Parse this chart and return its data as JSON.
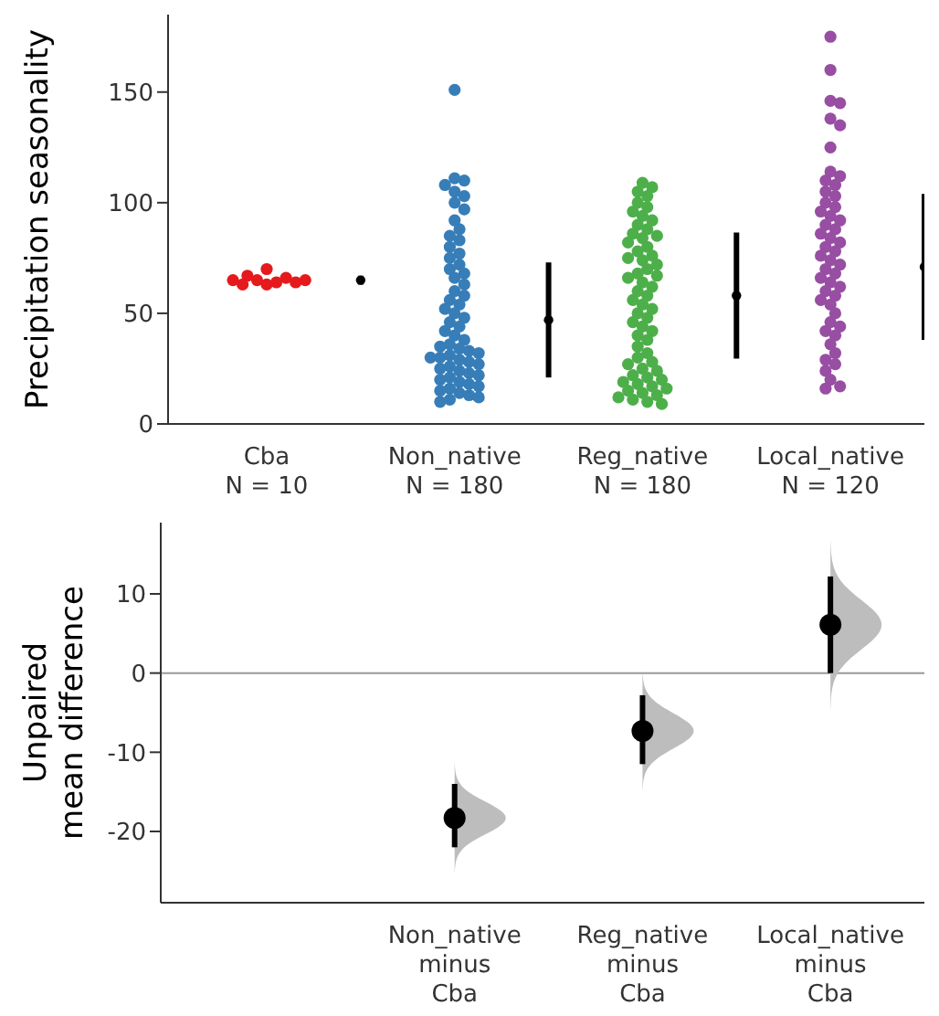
{
  "chart_data": [
    {
      "type": "scatter",
      "ylabel": "Precipitation seasonality",
      "categories": [
        "Cba\nN = 10",
        null,
        "Non_native\nN = 180",
        null,
        "Reg_native\nN = 180",
        null,
        "Local_native\nN = 120",
        null
      ],
      "ylim": [
        0,
        185
      ],
      "yticks": [
        0,
        50,
        100,
        150
      ],
      "marker": "circle",
      "series": [
        {
          "color": "#e41a1c",
          "x": [
            "Cba\nN = 10",
            "Cba\nN = 10",
            "Cba\nN = 10",
            "Cba\nN = 10",
            "Cba\nN = 10",
            "Cba\nN = 10",
            "Cba\nN = 10",
            "Cba\nN = 10",
            "Cba\nN = 10",
            "Cba\nN = 10"
          ],
          "values": [
            63,
            64,
            65,
            66,
            70,
            67,
            63,
            64,
            65,
            65
          ]
        },
        {
          "color": "#377eb8",
          "x": [
            "Non_native\nN = 180",
            "Non_native\nN = 180",
            "Non_native\nN = 180",
            "Non_native\nN = 180",
            "Non_native\nN = 180",
            "Non_native\nN = 180",
            "Non_native\nN = 180",
            "Non_native\nN = 180",
            "Non_native\nN = 180",
            "Non_native\nN = 180",
            "Non_native\nN = 180",
            "Non_native\nN = 180",
            "Non_native\nN = 180",
            "Non_native\nN = 180",
            "Non_native\nN = 180",
            "Non_native\nN = 180",
            "Non_native\nN = 180",
            "Non_native\nN = 180",
            "Non_native\nN = 180",
            "Non_native\nN = 180",
            "Non_native\nN = 180",
            "Non_native\nN = 180",
            "Non_native\nN = 180",
            "Non_native\nN = 180",
            "Non_native\nN = 180",
            "Non_native\nN = 180",
            "Non_native\nN = 180",
            "Non_native\nN = 180",
            "Non_native\nN = 180",
            "Non_native\nN = 180",
            "Non_native\nN = 180",
            "Non_native\nN = 180",
            "Non_native\nN = 180",
            "Non_native\nN = 180",
            "Non_native\nN = 180",
            "Non_native\nN = 180",
            "Non_native\nN = 180",
            "Non_native\nN = 180",
            "Non_native\nN = 180",
            "Non_native\nN = 180",
            "Non_native\nN = 180",
            "Non_native\nN = 180",
            "Non_native\nN = 180",
            "Non_native\nN = 180",
            "Non_native\nN = 180",
            "Non_native\nN = 180",
            "Non_native\nN = 180",
            "Non_native\nN = 180",
            "Non_native\nN = 180",
            "Non_native\nN = 180",
            "Non_native\nN = 180",
            "Non_native\nN = 180",
            "Non_native\nN = 180",
            "Non_native\nN = 180",
            "Non_native\nN = 180",
            "Non_native\nN = 180",
            "Non_native\nN = 180",
            "Non_native\nN = 180",
            "Non_native\nN = 180",
            "Non_native\nN = 180"
          ],
          "values": [
            151,
            111,
            110,
            108,
            105,
            103,
            100,
            97,
            92,
            88,
            85,
            83,
            80,
            77,
            75,
            72,
            70,
            68,
            66,
            63,
            60,
            58,
            56,
            54,
            52,
            50,
            48,
            46,
            44,
            42,
            40,
            38,
            36,
            35,
            34,
            33,
            32,
            31,
            30,
            30,
            29,
            28,
            27,
            26,
            25,
            24,
            23,
            22,
            21,
            20,
            19,
            18,
            17,
            16,
            15,
            14,
            13,
            12,
            11,
            10
          ]
        },
        {
          "color": "#4daf4a",
          "x": [
            "Reg_native\nN = 180",
            "Reg_native\nN = 180",
            "Reg_native\nN = 180",
            "Reg_native\nN = 180",
            "Reg_native\nN = 180",
            "Reg_native\nN = 180",
            "Reg_native\nN = 180",
            "Reg_native\nN = 180",
            "Reg_native\nN = 180",
            "Reg_native\nN = 180",
            "Reg_native\nN = 180",
            "Reg_native\nN = 180",
            "Reg_native\nN = 180",
            "Reg_native\nN = 180",
            "Reg_native\nN = 180",
            "Reg_native\nN = 180",
            "Reg_native\nN = 180",
            "Reg_native\nN = 180",
            "Reg_native\nN = 180",
            "Reg_native\nN = 180",
            "Reg_native\nN = 180",
            "Reg_native\nN = 180",
            "Reg_native\nN = 180",
            "Reg_native\nN = 180",
            "Reg_native\nN = 180",
            "Reg_native\nN = 180",
            "Reg_native\nN = 180",
            "Reg_native\nN = 180",
            "Reg_native\nN = 180",
            "Reg_native\nN = 180",
            "Reg_native\nN = 180",
            "Reg_native\nN = 180",
            "Reg_native\nN = 180",
            "Reg_native\nN = 180",
            "Reg_native\nN = 180",
            "Reg_native\nN = 180",
            "Reg_native\nN = 180",
            "Reg_native\nN = 180",
            "Reg_native\nN = 180",
            "Reg_native\nN = 180",
            "Reg_native\nN = 180",
            "Reg_native\nN = 180",
            "Reg_native\nN = 180",
            "Reg_native\nN = 180",
            "Reg_native\nN = 180",
            "Reg_native\nN = 180",
            "Reg_native\nN = 180",
            "Reg_native\nN = 180",
            "Reg_native\nN = 180",
            "Reg_native\nN = 180",
            "Reg_native\nN = 180",
            "Reg_native\nN = 180",
            "Reg_native\nN = 180",
            "Reg_native\nN = 180",
            "Reg_native\nN = 180",
            "Reg_native\nN = 180",
            "Reg_native\nN = 180",
            "Reg_native\nN = 180",
            "Reg_native\nN = 180",
            "Reg_native\nN = 180"
          ],
          "values": [
            109,
            107,
            105,
            103,
            100,
            98,
            96,
            94,
            92,
            90,
            88,
            86,
            85,
            84,
            82,
            80,
            78,
            76,
            75,
            74,
            72,
            70,
            68,
            67,
            66,
            64,
            62,
            60,
            58,
            56,
            54,
            52,
            50,
            48,
            46,
            44,
            42,
            40,
            38,
            35,
            32,
            30,
            28,
            27,
            25,
            24,
            22,
            21,
            20,
            19,
            18,
            17,
            16,
            15,
            14,
            13,
            12,
            11,
            10,
            9
          ]
        },
        {
          "color": "#984ea3",
          "x": [
            "Local_native\nN = 120",
            "Local_native\nN = 120",
            "Local_native\nN = 120",
            "Local_native\nN = 120",
            "Local_native\nN = 120",
            "Local_native\nN = 120",
            "Local_native\nN = 120",
            "Local_native\nN = 120",
            "Local_native\nN = 120",
            "Local_native\nN = 120",
            "Local_native\nN = 120",
            "Local_native\nN = 120",
            "Local_native\nN = 120",
            "Local_native\nN = 120",
            "Local_native\nN = 120",
            "Local_native\nN = 120",
            "Local_native\nN = 120",
            "Local_native\nN = 120",
            "Local_native\nN = 120",
            "Local_native\nN = 120",
            "Local_native\nN = 120",
            "Local_native\nN = 120",
            "Local_native\nN = 120",
            "Local_native\nN = 120",
            "Local_native\nN = 120",
            "Local_native\nN = 120",
            "Local_native\nN = 120",
            "Local_native\nN = 120",
            "Local_native\nN = 120",
            "Local_native\nN = 120",
            "Local_native\nN = 120",
            "Local_native\nN = 120",
            "Local_native\nN = 120",
            "Local_native\nN = 120",
            "Local_native\nN = 120",
            "Local_native\nN = 120",
            "Local_native\nN = 120",
            "Local_native\nN = 120",
            "Local_native\nN = 120",
            "Local_native\nN = 120",
            "Local_native\nN = 120",
            "Local_native\nN = 120",
            "Local_native\nN = 120",
            "Local_native\nN = 120",
            "Local_native\nN = 120",
            "Local_native\nN = 120",
            "Local_native\nN = 120",
            "Local_native\nN = 120",
            "Local_native\nN = 120",
            "Local_native\nN = 120"
          ],
          "values": [
            175,
            160,
            146,
            145,
            138,
            135,
            125,
            114,
            112,
            110,
            108,
            105,
            103,
            100,
            98,
            96,
            94,
            92,
            90,
            88,
            86,
            84,
            82,
            80,
            78,
            76,
            74,
            72,
            70,
            68,
            66,
            64,
            62,
            60,
            58,
            56,
            54,
            50,
            46,
            44,
            42,
            40,
            36,
            32,
            29,
            27,
            24,
            20,
            17,
            16
          ]
        },
        {
          "color": "#000000",
          "values": [
            null,
            65,
            null,
            47,
            null,
            58,
            null,
            71
          ],
          "errors": [
            null,
            2,
            null,
            26,
            null,
            28.5,
            null,
            33
          ]
        }
      ]
    },
    {
      "type": "scatter",
      "ylabel": "Unpaired\nmean difference",
      "categories": [
        null,
        "Non_native\nminus\nCba",
        "Reg_native\nminus\nCba",
        "Local_native\nminus\nCba"
      ],
      "ylim": [
        -29,
        19
      ],
      "yticks": [
        -20,
        -10,
        0,
        10
      ],
      "marker": "circle",
      "ref_lines": [
        {
          "axis": "y",
          "value": 0,
          "color": "#999999"
        }
      ],
      "series": [
        {
          "color": "#000000",
          "values": [
            null,
            -18.3,
            -7.3,
            6.1
          ],
          "errors": [
            null,
            [
              -22,
              -14
            ],
            [
              -11.5,
              -2.8
            ],
            [
              0,
              12.2
            ]
          ]
        }
      ]
    }
  ]
}
